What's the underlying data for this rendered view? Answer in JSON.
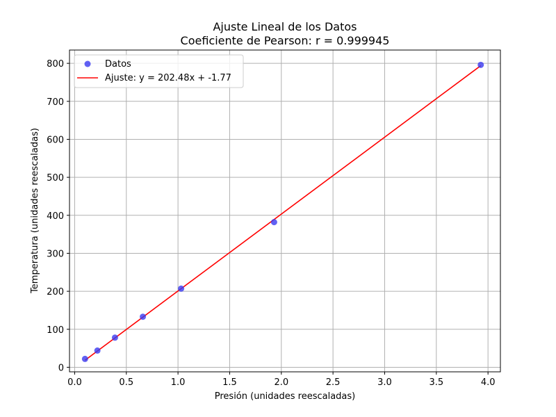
{
  "chart_data": {
    "type": "scatter",
    "title": "Ajuste Lineal de los Datos",
    "subtitle": "Coeficiente de Pearson: r = 0.999945",
    "xlabel": "Presión (unidades reescaladas)",
    "ylabel": "Temperatura (unidades reescaladas)",
    "xlim": [
      -0.05,
      4.12
    ],
    "ylim": [
      -12,
      835
    ],
    "xticks": [
      0.0,
      0.5,
      1.0,
      1.5,
      2.0,
      2.5,
      3.0,
      3.5,
      4.0
    ],
    "xtick_labels": [
      "0.0",
      "0.5",
      "1.0",
      "1.5",
      "2.0",
      "2.5",
      "3.0",
      "3.5",
      "4.0"
    ],
    "yticks": [
      0,
      100,
      200,
      300,
      400,
      500,
      600,
      700,
      800
    ],
    "ytick_labels": [
      "0",
      "100",
      "200",
      "300",
      "400",
      "500",
      "600",
      "700",
      "800"
    ],
    "grid": true,
    "legend_position": "top-left",
    "series": [
      {
        "name": "Datos",
        "kind": "scatter",
        "color": "#3a3af0",
        "x": [
          0.1,
          0.22,
          0.39,
          0.66,
          1.03,
          1.93,
          3.93
        ],
        "y": [
          22,
          44,
          78,
          133,
          207,
          382,
          796
        ]
      },
      {
        "name": "Ajuste: y = 202.48x + -1.77",
        "kind": "line",
        "color": "#ff0000",
        "slope": 202.48,
        "intercept": -1.77,
        "x_range": [
          0.1,
          3.93
        ]
      }
    ]
  }
}
